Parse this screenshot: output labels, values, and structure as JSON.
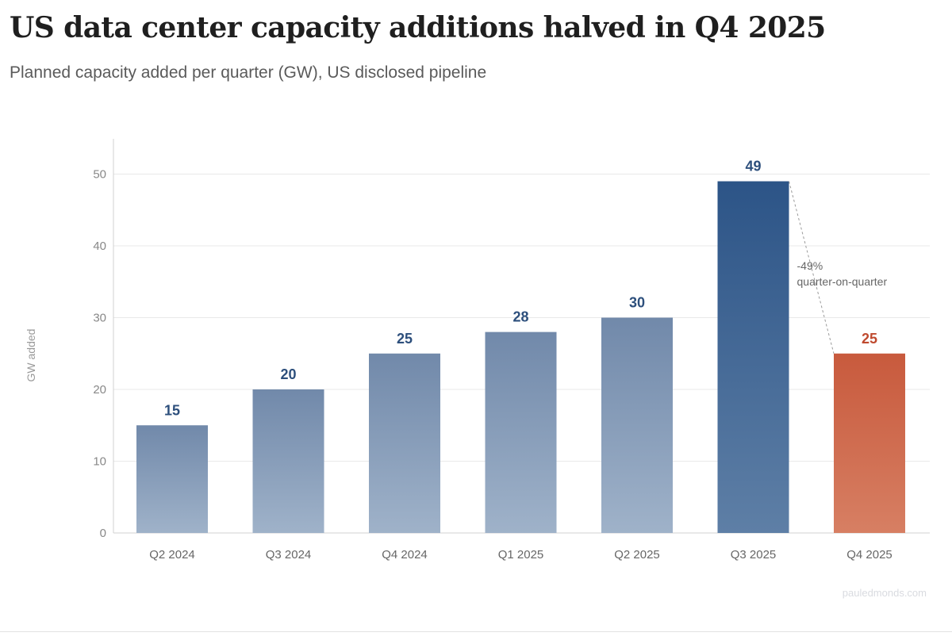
{
  "header": {
    "title": "US data center capacity additions halved in Q4 2025",
    "subtitle": "Planned capacity added per quarter (GW), US disclosed pipeline"
  },
  "credit": "pauledmonds.com",
  "chart_data": {
    "type": "bar",
    "title": "US data center capacity additions halved in Q4 2025",
    "subtitle": "Planned capacity added per quarter (GW), US disclosed pipeline",
    "xlabel": "",
    "ylabel": "GW added",
    "ylim": [
      0,
      55
    ],
    "yticks": [
      0,
      10,
      20,
      30,
      40,
      50
    ],
    "grid": true,
    "categories": [
      "Q2 2024",
      "Q3 2024",
      "Q4 2024",
      "Q1 2025",
      "Q2 2025",
      "Q3 2025",
      "Q4 2025"
    ],
    "values": [
      15,
      20,
      25,
      28,
      30,
      49,
      25
    ],
    "bar_styles": [
      "muted",
      "muted",
      "muted",
      "muted",
      "muted",
      "highlight",
      "alert"
    ],
    "annotation": {
      "from_category": "Q3 2025",
      "to_category": "Q4 2025",
      "lines": [
        "-49%",
        "quarter-on-quarter"
      ]
    }
  },
  "colors": {
    "muted_top": "#7189aa",
    "muted_bottom": "#9fb2c9",
    "highlight_top": "#2c5487",
    "highlight_bottom": "#5e7fa6",
    "alert_top": "#c85a3d",
    "alert_bottom": "#d77f63",
    "value_text": "#2d4f7c",
    "alert_text": "#bf4a2f",
    "gridline": "#e9e9e9",
    "axis": "#d0d0d0"
  }
}
